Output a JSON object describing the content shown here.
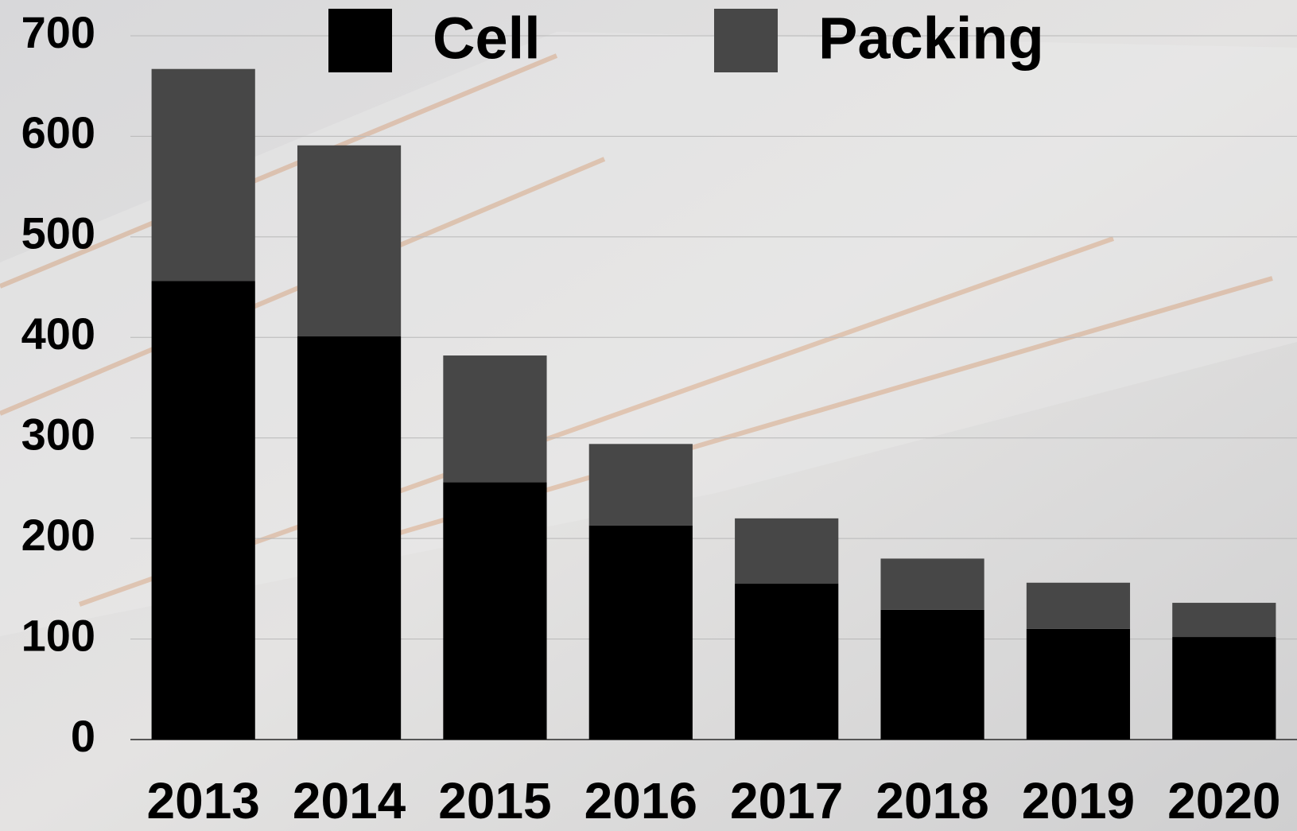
{
  "chart_data": {
    "type": "stacked_bar",
    "categories": [
      "2013",
      "2014",
      "2015",
      "2016",
      "2017",
      "2018",
      "2019",
      "2020"
    ],
    "series": [
      {
        "name": "Cell",
        "color": "#000000",
        "values": [
          456,
          401,
          256,
          213,
          155,
          129,
          110,
          102
        ]
      },
      {
        "name": "Packing",
        "color": "#474747",
        "values": [
          211,
          190,
          126,
          81,
          65,
          51,
          46,
          34
        ]
      }
    ],
    "ylim": [
      0,
      700
    ],
    "yticks": [
      0,
      100,
      200,
      300,
      400,
      500,
      600,
      700
    ],
    "grid": true,
    "legend": "top"
  }
}
